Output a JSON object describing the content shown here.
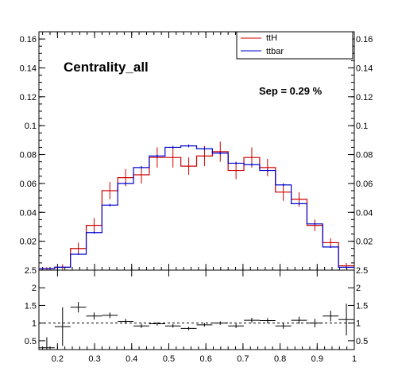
{
  "chart_data": [
    {
      "type": "histogram",
      "title": "Centrality_all",
      "annotation": "Sep = 0.29 %",
      "xlim": [
        0.15,
        1.0
      ],
      "ylim": [
        0,
        0.165
      ],
      "bin_edges": [
        0.15,
        0.1925,
        0.235,
        0.2775,
        0.32,
        0.3625,
        0.405,
        0.4475,
        0.49,
        0.5325,
        0.575,
        0.6175,
        0.66,
        0.7025,
        0.745,
        0.7875,
        0.83,
        0.8725,
        0.915,
        0.9575,
        1.0
      ],
      "yticks": [
        "0.02",
        "0.04",
        "0.06",
        "0.08",
        "0.1",
        "0.12",
        "0.14",
        "0.16"
      ],
      "ytick_values": [
        0.02,
        0.04,
        0.06,
        0.08,
        0.1,
        0.12,
        0.14,
        0.16
      ],
      "legend_position": "top-right",
      "series": [
        {
          "name": "ttH",
          "color": "#cc0000",
          "values": [
            0.001,
            0.002,
            0.015,
            0.031,
            0.055,
            0.064,
            0.066,
            0.078,
            0.078,
            0.072,
            0.079,
            0.082,
            0.069,
            0.078,
            0.071,
            0.054,
            0.049,
            0.031,
            0.019,
            0.003
          ],
          "errors": [
            0.001,
            0.002,
            0.004,
            0.005,
            0.006,
            0.006,
            0.006,
            0.007,
            0.007,
            0.006,
            0.007,
            0.007,
            0.006,
            0.007,
            0.006,
            0.006,
            0.005,
            0.004,
            0.003,
            0.002
          ]
        },
        {
          "name": "ttbar",
          "color": "#0000cc",
          "values": [
            0.001,
            0.002,
            0.011,
            0.026,
            0.045,
            0.06,
            0.071,
            0.079,
            0.085,
            0.086,
            0.084,
            0.081,
            0.074,
            0.073,
            0.069,
            0.059,
            0.046,
            0.032,
            0.016,
            0.002
          ],
          "errors": [
            0.0003,
            0.0003,
            0.0006,
            0.0008,
            0.001,
            0.001,
            0.001,
            0.001,
            0.001,
            0.001,
            0.001,
            0.001,
            0.001,
            0.001,
            0.001,
            0.001,
            0.001,
            0.0008,
            0.0006,
            0.0003
          ]
        }
      ]
    },
    {
      "type": "ratio",
      "xlim": [
        0.15,
        1.0
      ],
      "ylim": [
        0.25,
        2.5
      ],
      "reference_line": 1,
      "xticks": [
        "0.2",
        "0.3",
        "0.4",
        "0.5",
        "0.6",
        "0.7",
        "0.8",
        "0.9",
        "1"
      ],
      "xtick_values": [
        0.2,
        0.3,
        0.4,
        0.5,
        0.6,
        0.7,
        0.8,
        0.9,
        1.0
      ],
      "yticks": [
        "0.5",
        "1",
        "1.5",
        "2",
        "2.5"
      ],
      "ytick_values": [
        0.5,
        1,
        1.5,
        2,
        2.5
      ],
      "values": [
        0.3,
        0.9,
        1.45,
        1.2,
        1.22,
        1.05,
        0.92,
        0.98,
        0.92,
        0.85,
        0.95,
        1.0,
        0.92,
        1.08,
        1.07,
        0.92,
        1.08,
        1.0,
        1.2,
        1.1
      ],
      "errors": [
        0.3,
        0.55,
        0.15,
        0.1,
        0.08,
        0.07,
        0.06,
        0.05,
        0.05,
        0.05,
        0.05,
        0.05,
        0.06,
        0.07,
        0.07,
        0.08,
        0.1,
        0.12,
        0.15,
        0.45
      ]
    }
  ]
}
